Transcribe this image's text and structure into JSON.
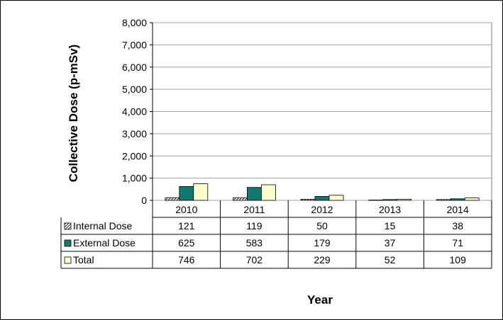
{
  "chart_data": {
    "type": "bar",
    "categories": [
      "2010",
      "2011",
      "2012",
      "2013",
      "2014"
    ],
    "series": [
      {
        "name": "Internal Dose",
        "values": [
          121,
          119,
          50,
          15,
          38
        ],
        "color": "#ffffff",
        "pattern": "hatch"
      },
      {
        "name": "External Dose",
        "values": [
          625,
          583,
          179,
          37,
          71
        ],
        "color": "#0e7a72"
      },
      {
        "name": "Total",
        "values": [
          746,
          702,
          229,
          52,
          109
        ],
        "color": "#ffffcc"
      }
    ],
    "yticks": [
      "0",
      "1,000",
      "2,000",
      "3,000",
      "4,000",
      "5,000",
      "6,000",
      "7,000",
      "8,000"
    ],
    "ylim": [
      0,
      8000
    ],
    "ylabel": "Collective Dose (p-mSv)",
    "xlabel": "Year",
    "grid": true,
    "legend": "data-table",
    "table": {
      "rows": [
        {
          "label": "Internal Dose",
          "values": [
            "121",
            "119",
            "50",
            "15",
            "38"
          ]
        },
        {
          "label": "External Dose",
          "values": [
            "625",
            "583",
            "179",
            "37",
            "71"
          ]
        },
        {
          "label": "Total",
          "values": [
            "746",
            "702",
            "229",
            "52",
            "109"
          ]
        }
      ]
    }
  }
}
